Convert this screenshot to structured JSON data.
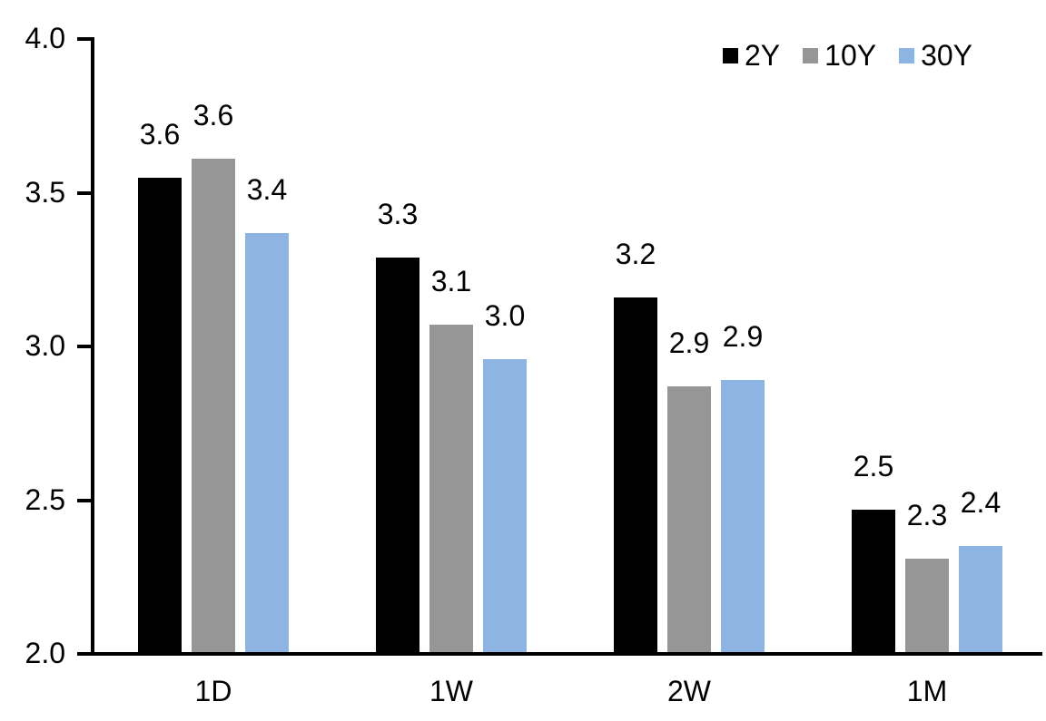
{
  "chart_data": {
    "type": "bar",
    "title": "",
    "xlabel": "",
    "ylabel": "",
    "categories": [
      "1D",
      "1W",
      "2W",
      "1M"
    ],
    "series": [
      {
        "name": "2Y",
        "color": "#000000",
        "values": [
          3.55,
          3.29,
          3.16,
          2.47
        ],
        "labels": [
          "3.6",
          "3.3",
          "3.2",
          "2.5"
        ]
      },
      {
        "name": "10Y",
        "color": "#969696",
        "values": [
          3.61,
          3.07,
          2.87,
          2.31
        ],
        "labels": [
          "3.6",
          "3.1",
          "2.9",
          "2.3"
        ]
      },
      {
        "name": "30Y",
        "color": "#8DB4E2",
        "values": [
          3.37,
          2.96,
          2.89,
          2.35
        ],
        "labels": [
          "3.4",
          "3.0",
          "2.9",
          "2.4"
        ]
      }
    ],
    "ylim": [
      2.0,
      4.0
    ],
    "yticks": [
      "2.0",
      "2.5",
      "3.0",
      "3.5",
      "4.0"
    ],
    "legend_position": "top-right",
    "grid": false,
    "axis_color": "#000000",
    "background_color": "#FFFFFF",
    "bar_value_precision": 1
  }
}
